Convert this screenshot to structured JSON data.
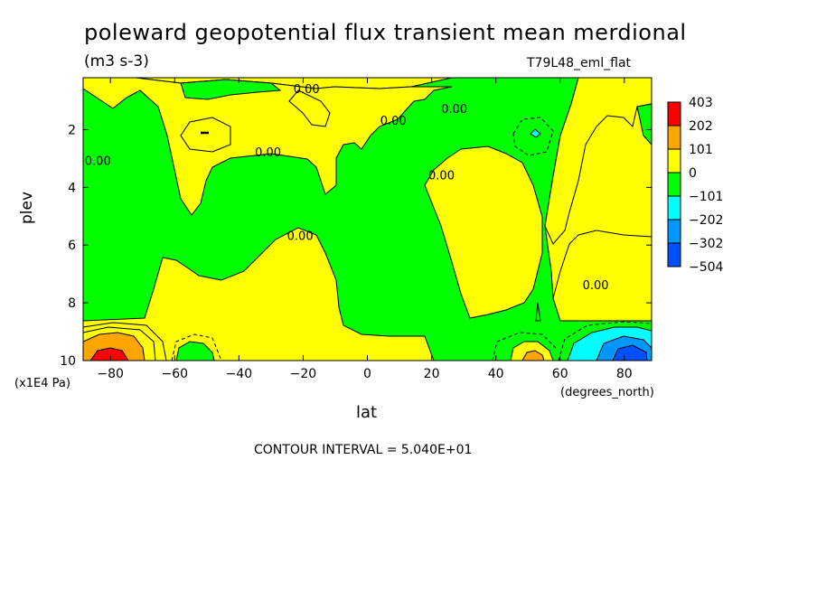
{
  "header": {
    "title": "poleward geopotential flux transient mean merdional",
    "units": "(m3 s-3)",
    "dataset": "T79L48_eml_flat"
  },
  "footer": {
    "contour_interval": "CONTOUR INTERVAL = 5.040E+01"
  },
  "chart_data": {
    "type": "heatmap",
    "title": "poleward geopotential flux transient mean merdional",
    "xlabel": "lat",
    "ylabel": "plev",
    "x_units": "(degrees_north)",
    "y_units": "(x1E4 Pa)",
    "xlim": [
      -90,
      90
    ],
    "ylim": [
      10,
      0.2
    ],
    "y_inverted": true,
    "x_ticks": [
      -80,
      -60,
      -40,
      -20,
      0,
      20,
      40,
      60,
      80
    ],
    "x_tick_labels": [
      "−80",
      "−60",
      "−40",
      "−20",
      "0",
      "20",
      "40",
      "60",
      "80"
    ],
    "y_ticks": [
      2,
      4,
      6,
      8,
      10
    ],
    "y_tick_labels": [
      "2",
      "4",
      "6",
      "8",
      "10"
    ],
    "contour_labels": [
      {
        "text": "0.00",
        "lat": -23,
        "plev": 0.6
      },
      {
        "text": "0.00",
        "lat": -88,
        "plev": 3.1
      },
      {
        "text": "0.00",
        "lat": -35,
        "plev": 2.8
      },
      {
        "text": "0.00",
        "lat": -25,
        "plev": 5.7
      },
      {
        "text": "0.00",
        "lat": 4,
        "plev": 1.7
      },
      {
        "text": "0.00",
        "lat": 23,
        "plev": 1.3
      },
      {
        "text": "0.00",
        "lat": 19,
        "plev": 3.6
      },
      {
        "text": "0.00",
        "lat": 67,
        "plev": 7.4
      }
    ],
    "colorbar": {
      "levels": [
        "403",
        "202",
        "101",
        "0",
        "−101",
        "−202",
        "−302",
        "−504"
      ],
      "colors": [
        "#ff0000",
        "#ffa500",
        "#ffff00",
        "#00ff00",
        "#00ffff",
        "#0096ff",
        "#0050ff"
      ]
    },
    "field_colors": {
      "positive": "#ffff00",
      "negative": "#00ff00",
      "strong_positive": "#ffa500",
      "max_positive": "#ff0000",
      "strong_negative": "#00ffff",
      "very_negative": "#0096ff",
      "max_negative": "#0050ff"
    }
  }
}
